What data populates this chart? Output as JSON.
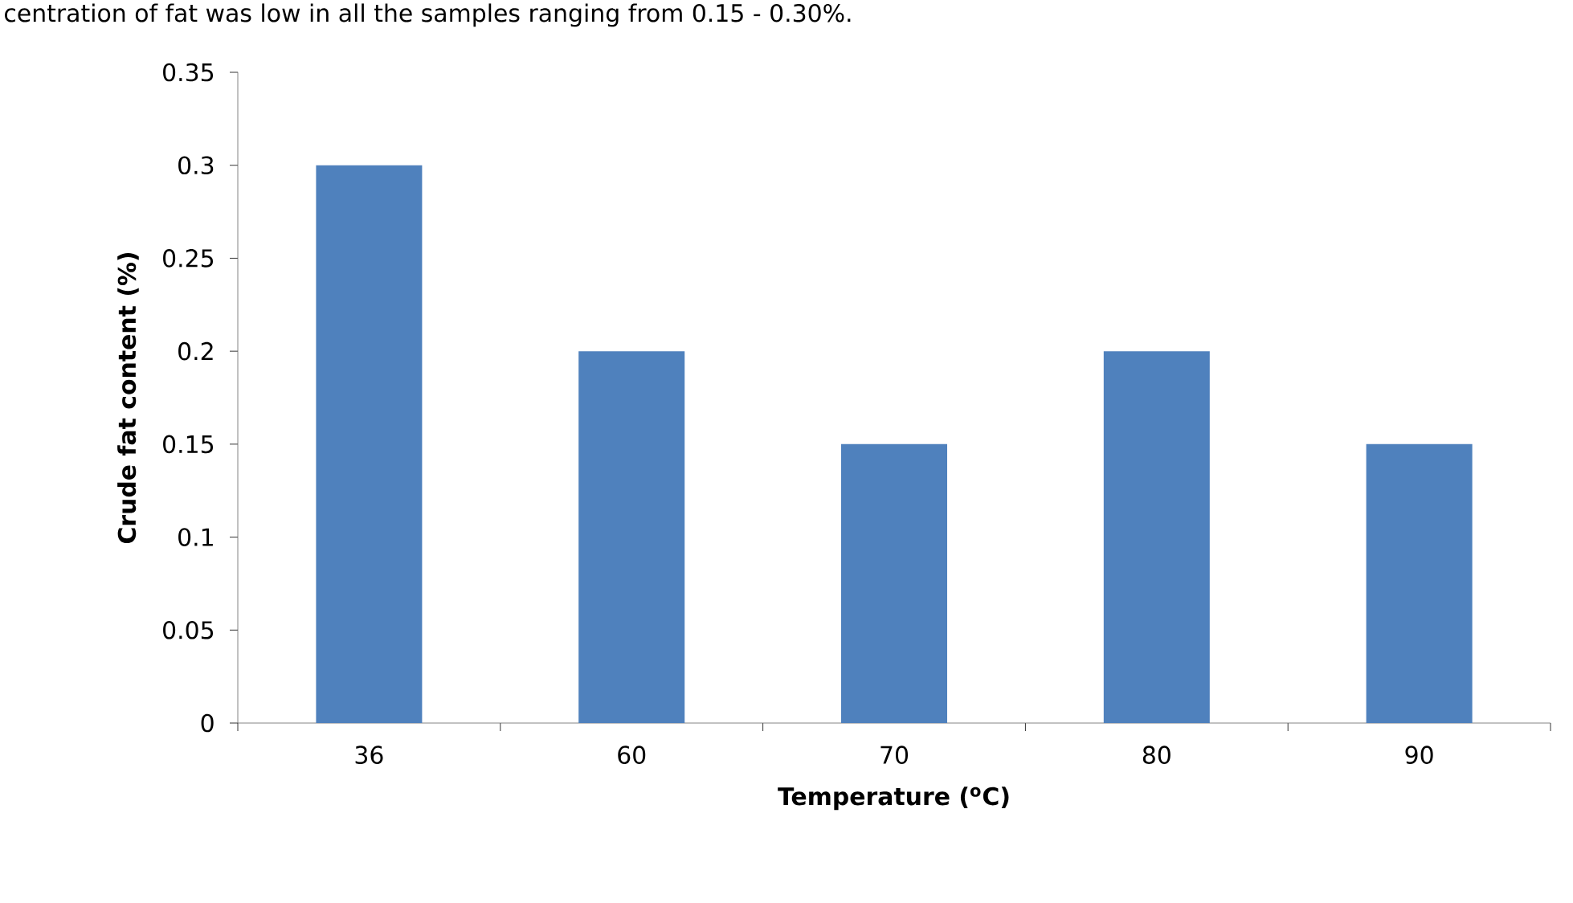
{
  "chart_data": {
    "type": "bar",
    "xlabel": "Temperature ($^{o}$C)",
    "ylabel": "Crude fat content (%)",
    "annotations": [
      "centration of fat was low in all the samples ranging from 0.15 - 0.30%."
    ],
    "categories": [
      "36",
      "60",
      "70",
      "80",
      "90"
    ],
    "values": [
      0.3,
      0.2,
      0.15,
      0.2,
      0.15
    ],
    "color": "#4f81bd",
    "ylim": [
      0,
      0.35
    ],
    "yticks": [
      0,
      0.05,
      0.1,
      0.15,
      0.2,
      0.25,
      0.3,
      0.35
    ]
  }
}
